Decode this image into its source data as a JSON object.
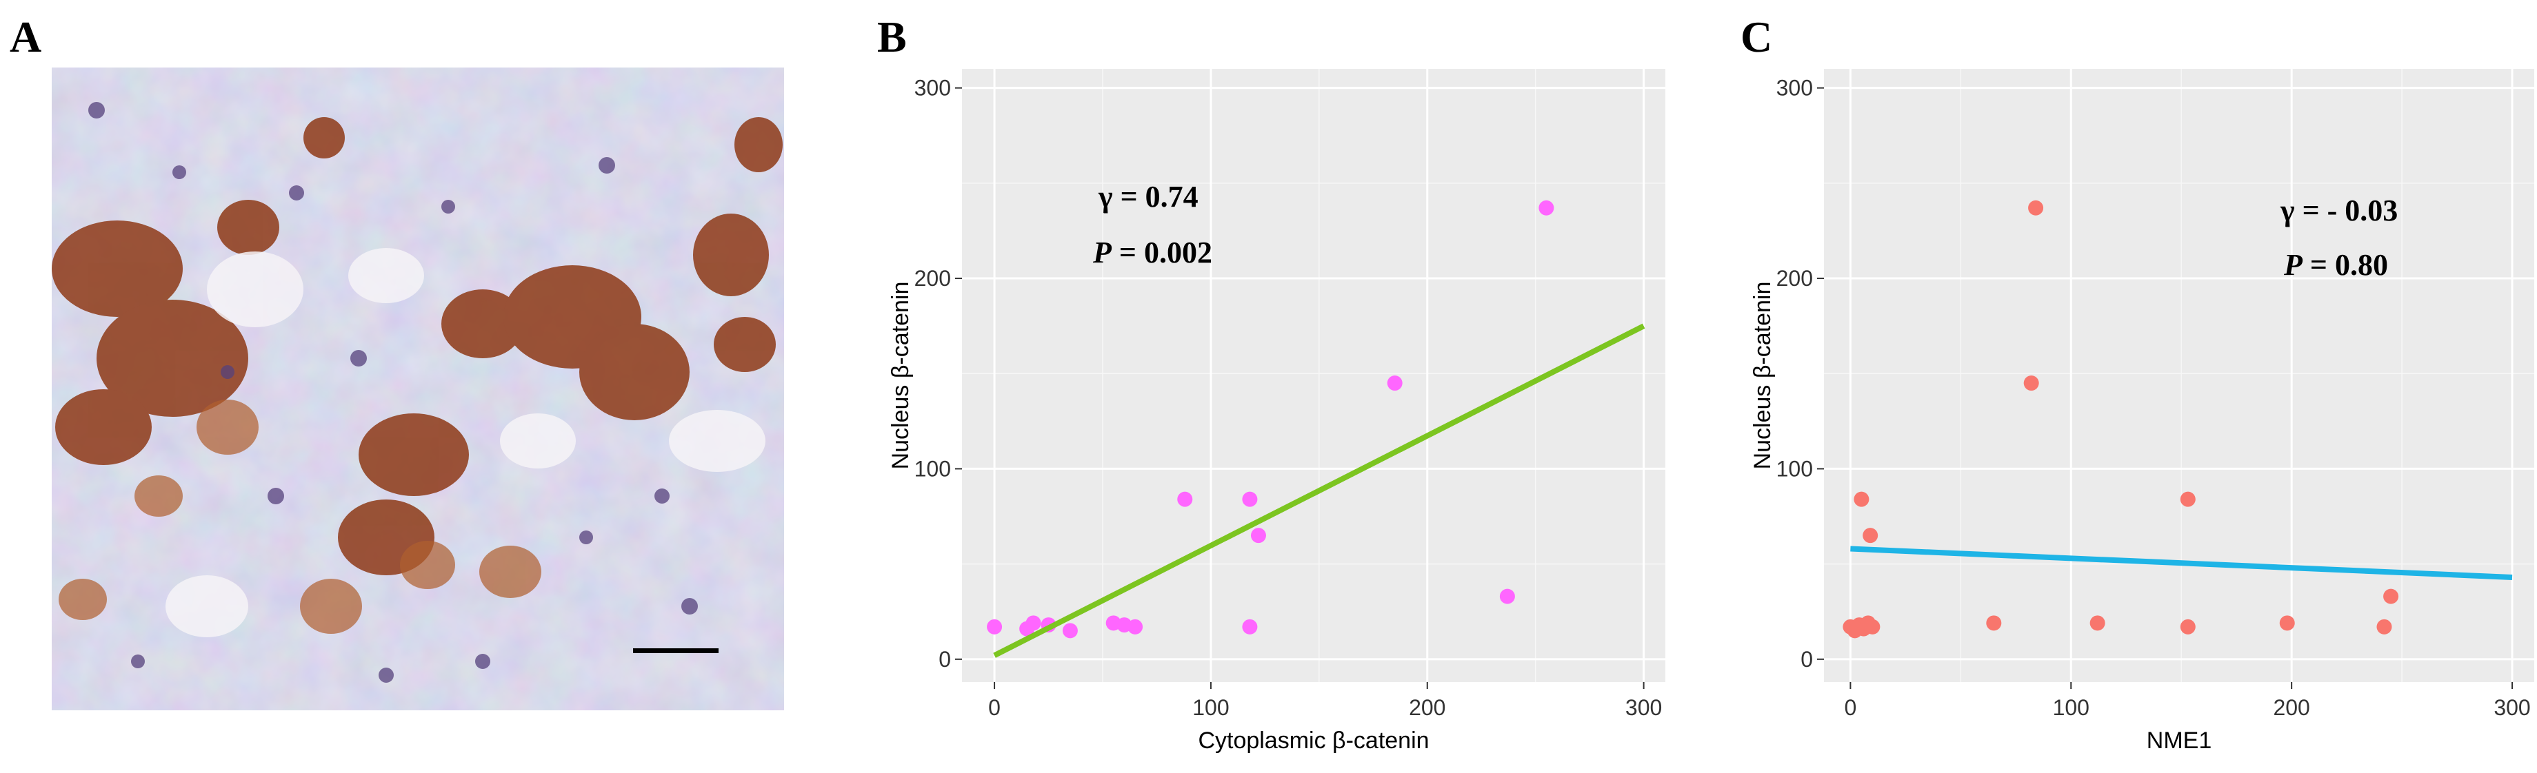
{
  "panels": {
    "a": {
      "letter": "A"
    },
    "b": {
      "letter": "B",
      "gamma": "γ = 0.74",
      "p_label": "P",
      "p_value": " = 0.002"
    },
    "c": {
      "letter": "C",
      "gamma": "γ = - 0.03",
      "p_label": "P",
      "p_value": " = 0.80"
    }
  },
  "chart_data": [
    {
      "type": "scatter",
      "panel": "B",
      "xlabel": "Cytoplasmic β-catenin",
      "ylabel": "Nucleus β-catenin",
      "xlim": [
        -15,
        310
      ],
      "ylim": [
        -12,
        310
      ],
      "xticks": [
        0,
        100,
        200,
        300
      ],
      "yticks": [
        0,
        100,
        200,
        300
      ],
      "grid": true,
      "point_color": "#ff66ff",
      "line_color": "#7cc520",
      "points": [
        {
          "x": 0,
          "y": 17
        },
        {
          "x": 15,
          "y": 16
        },
        {
          "x": 18,
          "y": 19
        },
        {
          "x": 25,
          "y": 18
        },
        {
          "x": 35,
          "y": 15
        },
        {
          "x": 55,
          "y": 19
        },
        {
          "x": 60,
          "y": 18
        },
        {
          "x": 65,
          "y": 17
        },
        {
          "x": 88,
          "y": 84
        },
        {
          "x": 118,
          "y": 84
        },
        {
          "x": 118,
          "y": 17
        },
        {
          "x": 122,
          "y": 65
        },
        {
          "x": 185,
          "y": 145
        },
        {
          "x": 237,
          "y": 33
        },
        {
          "x": 255,
          "y": 237
        }
      ],
      "fit_line": {
        "x": [
          0,
          300
        ],
        "y": [
          2,
          175
        ]
      }
    },
    {
      "type": "scatter",
      "panel": "C",
      "xlabel": "NME1",
      "ylabel": "Nucleus β-catenin",
      "xlim": [
        -12,
        310
      ],
      "ylim": [
        -12,
        310
      ],
      "xticks": [
        0,
        100,
        200,
        300
      ],
      "yticks": [
        0,
        100,
        200,
        300
      ],
      "grid": true,
      "point_color": "#f8766d",
      "line_color": "#1eb4e6",
      "points": [
        {
          "x": 0,
          "y": 17
        },
        {
          "x": 2,
          "y": 15
        },
        {
          "x": 4,
          "y": 18
        },
        {
          "x": 5,
          "y": 84
        },
        {
          "x": 6,
          "y": 16
        },
        {
          "x": 8,
          "y": 19
        },
        {
          "x": 9,
          "y": 65
        },
        {
          "x": 10,
          "y": 17
        },
        {
          "x": 65,
          "y": 19
        },
        {
          "x": 82,
          "y": 145
        },
        {
          "x": 84,
          "y": 237
        },
        {
          "x": 112,
          "y": 19
        },
        {
          "x": 153,
          "y": 84
        },
        {
          "x": 153,
          "y": 17
        },
        {
          "x": 198,
          "y": 19
        },
        {
          "x": 242,
          "y": 17
        },
        {
          "x": 245,
          "y": 33
        }
      ],
      "fit_line": {
        "x": [
          0,
          300
        ],
        "y": [
          58,
          43
        ]
      }
    }
  ]
}
